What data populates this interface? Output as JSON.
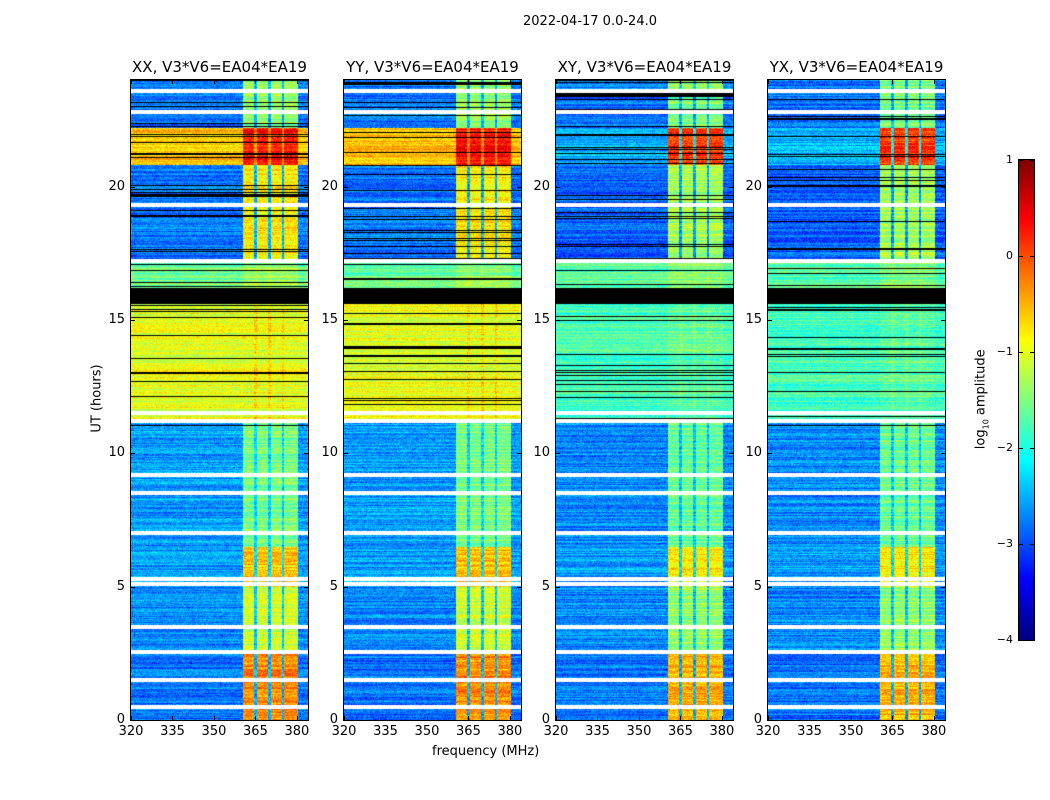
{
  "chart_data": {
    "type": "heatmap",
    "title": "2022-04-17 0.0-24.0",
    "xlabel": "frequency (MHz)",
    "ylabel": "UT (hours)",
    "xlim": [
      320,
      384
    ],
    "ylim": [
      0,
      24
    ],
    "xticks": [
      "320",
      "335",
      "350",
      "365",
      "380"
    ],
    "xtick_values": [
      320,
      335,
      350,
      365,
      380
    ],
    "yticks": [
      "0",
      "5",
      "10",
      "15",
      "20"
    ],
    "ytick_values": [
      0,
      5,
      10,
      15,
      20
    ],
    "panels": [
      {
        "title": "XX, V3*V6=EA04*EA19",
        "pol": "parallel"
      },
      {
        "title": "YY, V3*V6=EA04*EA19",
        "pol": "parallel"
      },
      {
        "title": "XY, V3*V6=EA04*EA19",
        "pol": "cross"
      },
      {
        "title": "YX, V3*V6=EA04*EA19",
        "pol": "cross"
      }
    ],
    "colorbar": {
      "label": "log10 amplitude",
      "label_main": "log",
      "label_sub": "10",
      "label_rest": " amplitude",
      "range": [
        -4,
        1
      ],
      "ticks": [
        "1",
        "0",
        "−1",
        "−2",
        "−3",
        "−4"
      ],
      "tick_values": [
        1,
        0,
        -1,
        -2,
        -3,
        -4
      ],
      "colormap": "jet"
    },
    "rfi_band_mhz": [
      360.5,
      380.5
    ],
    "rfi_channel_gaps_mhz": [
      365,
      370,
      375
    ],
    "segments_log_amplitude": [
      {
        "from": 0,
        "to": 2.5,
        "bg": [
          -2.8,
          -2.8
        ],
        "rfi": [
          -0.3,
          -0.5
        ]
      },
      {
        "from": 2.5,
        "to": 5,
        "bg": [
          -2.7,
          -2.7
        ],
        "rfi": [
          -1.1,
          -1.4
        ]
      },
      {
        "from": 5,
        "to": 6.5,
        "bg": [
          -2.6,
          -2.6
        ],
        "rfi": [
          -0.6,
          -0.8
        ]
      },
      {
        "from": 6.5,
        "to": 11.2,
        "bg": [
          -2.6,
          -2.7
        ],
        "rfi": [
          -1.5,
          -1.6
        ]
      },
      {
        "from": 11.2,
        "to": 15.6,
        "bg": [
          -1.0,
          -1.8
        ],
        "rfi": [
          -1.0,
          -1.7
        ]
      },
      {
        "from": 15.6,
        "to": 16.2,
        "bg": [
          -9,
          -9
        ],
        "rfi": [
          -9,
          -9
        ]
      },
      {
        "from": 16.2,
        "to": 17.3,
        "bg": [
          -1.6,
          -1.7
        ],
        "rfi": [
          -1.4,
          -1.5
        ]
      },
      {
        "from": 17.3,
        "to": 20.8,
        "bg": [
          -2.8,
          -2.9
        ],
        "rfi": [
          -0.8,
          -1.3
        ]
      },
      {
        "from": 20.8,
        "to": 22.2,
        "bg": [
          -0.6,
          -2.5
        ],
        "rfi": [
          0.3,
          0.1
        ]
      },
      {
        "from": 22.2,
        "to": 24,
        "bg": [
          -2.8,
          -2.8
        ],
        "rfi": [
          -1.4,
          -1.5
        ]
      }
    ],
    "flagged_gaps_hours": [
      0.5,
      1.5,
      2.55,
      3.5,
      5.1,
      5.3,
      7.0,
      8.5,
      9.2,
      11.2,
      11.5,
      17.2,
      19.3,
      22.8,
      23.6
    ]
  }
}
